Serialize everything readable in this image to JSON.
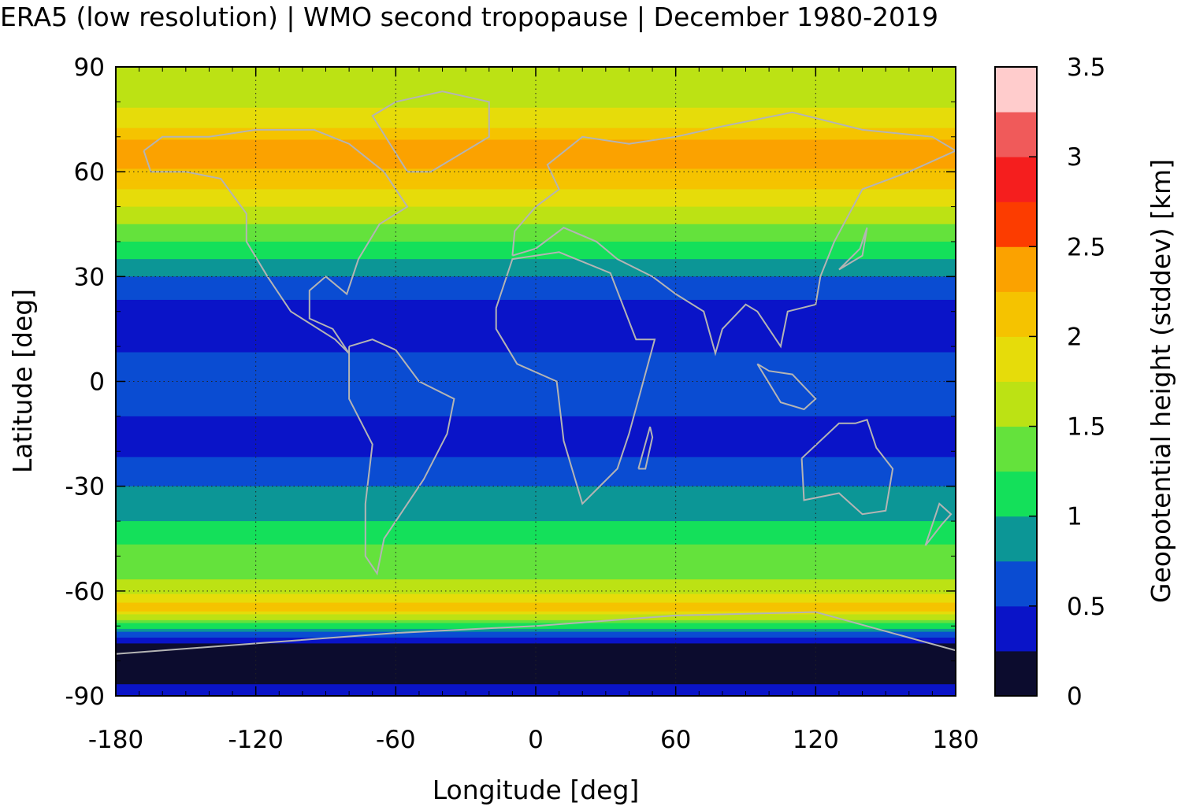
{
  "chart_data": {
    "type": "heatmap",
    "title": "ERA5 (low resolution) | WMO second tropopause | December 1980-2019",
    "xlabel": "Longitude [deg]",
    "ylabel": "Latitude [deg]",
    "colorbar_label": "Geopotential height (stddev) [km]",
    "xlim": [
      -180,
      180
    ],
    "ylim": [
      -90,
      90
    ],
    "xticks": [
      -180,
      -120,
      -60,
      0,
      60,
      120,
      180
    ],
    "yticks": [
      90,
      60,
      30,
      0,
      -30,
      -60,
      -90
    ],
    "grid": true,
    "colorbar_ticks": [
      0,
      0.5,
      1,
      1.5,
      2,
      2.5,
      3,
      3.5
    ],
    "colorbar_range": [
      0,
      3.5
    ],
    "colormap_levels": [
      {
        "from": 0.0,
        "to": 0.25,
        "color": "#0c0c2e"
      },
      {
        "from": 0.25,
        "to": 0.5,
        "color": "#0a14c8"
      },
      {
        "from": 0.5,
        "to": 0.75,
        "color": "#0a4cd2"
      },
      {
        "from": 0.75,
        "to": 1.0,
        "color": "#0c9696"
      },
      {
        "from": 1.0,
        "to": 1.25,
        "color": "#14e05a"
      },
      {
        "from": 1.25,
        "to": 1.5,
        "color": "#64e23c"
      },
      {
        "from": 1.5,
        "to": 1.75,
        "color": "#bce214"
      },
      {
        "from": 1.75,
        "to": 2.0,
        "color": "#e6dc0a"
      },
      {
        "from": 2.0,
        "to": 2.25,
        "color": "#f5c300"
      },
      {
        "from": 2.25,
        "to": 2.5,
        "color": "#fba200"
      },
      {
        "from": 2.5,
        "to": 2.75,
        "color": "#fc3c00"
      },
      {
        "from": 2.75,
        "to": 3.0,
        "color": "#f51e1e"
      },
      {
        "from": 3.0,
        "to": 3.25,
        "color": "#f05a5a"
      },
      {
        "from": 3.25,
        "to": 3.5,
        "color": "#ffcccc"
      }
    ],
    "zonal_profile": {
      "lat": [
        90,
        85,
        80,
        75,
        70,
        65,
        60,
        55,
        50,
        45,
        40,
        35,
        30,
        25,
        20,
        15,
        10,
        5,
        0,
        -5,
        -10,
        -15,
        -20,
        -25,
        -30,
        -35,
        -40,
        -45,
        -50,
        -55,
        -60,
        -65,
        -70,
        -75,
        -80,
        -85,
        -90
      ],
      "value": [
        1.55,
        1.6,
        1.7,
        1.85,
        2.2,
        2.4,
        2.2,
        2.0,
        1.75,
        1.5,
        1.25,
        1.0,
        0.75,
        0.55,
        0.4,
        0.4,
        0.45,
        0.6,
        0.75,
        0.65,
        0.5,
        0.4,
        0.45,
        0.6,
        0.75,
        0.85,
        1.0,
        1.2,
        1.35,
        1.45,
        1.6,
        2.2,
        1.1,
        0.2,
        0.1,
        0.1,
        0.5
      ]
    },
    "coastline_color": "#b4b4b4"
  }
}
